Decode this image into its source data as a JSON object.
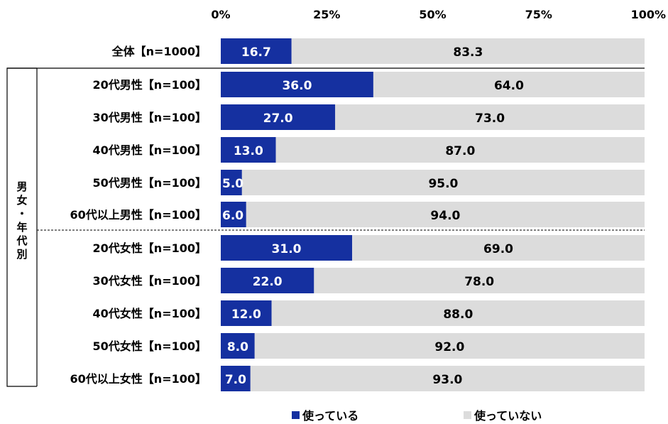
{
  "colors": {
    "used": "#1530a0",
    "not_used": "#dcdcdc",
    "value_on_used": "#ffffff",
    "value_on_not_used": "#000000"
  },
  "group_label": "男女・年代別",
  "legend": {
    "used": "使っている",
    "not_used": "使っていない"
  },
  "chart_data": {
    "type": "bar",
    "orientation": "horizontal",
    "stacked": "100%",
    "categories": [
      "全体【n=1000】",
      "20代男性【n=100】",
      "30代男性【n=100】",
      "40代男性【n=100】",
      "50代男性【n=100】",
      "60代以上男性【n=100】",
      "20代女性【n=100】",
      "30代女性【n=100】",
      "40代女性【n=100】",
      "50代女性【n=100】",
      "60代以上女性【n=100】"
    ],
    "series": [
      {
        "name": "使っている",
        "values": [
          16.7,
          36.0,
          27.0,
          13.0,
          5.0,
          6.0,
          31.0,
          22.0,
          12.0,
          8.0,
          7.0
        ]
      },
      {
        "name": "使っていない",
        "values": [
          83.3,
          64.0,
          73.0,
          87.0,
          95.0,
          94.0,
          69.0,
          78.0,
          88.0,
          92.0,
          93.0
        ]
      }
    ],
    "x_ticks": [
      "0%",
      "25%",
      "50%",
      "75%",
      "100%"
    ],
    "xlim": [
      0,
      100
    ],
    "grid": false,
    "legend_position": "bottom"
  }
}
